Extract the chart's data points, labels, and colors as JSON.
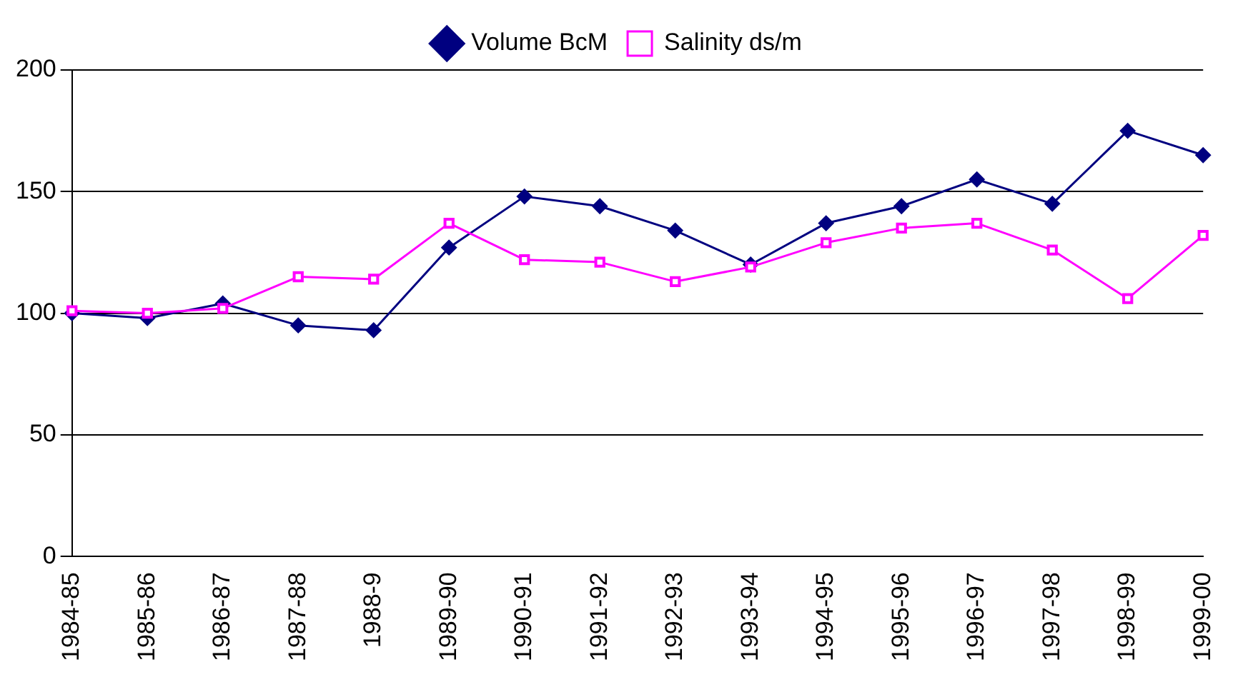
{
  "chart_data": {
    "type": "line",
    "categories": [
      "1984-85",
      "1985-86",
      "1986-87",
      "1987-88",
      "1988-9",
      "1989-90",
      "1990-91",
      "1991-92",
      "1992-93",
      "1993-94",
      "1994-95",
      "1995-96",
      "1996-97",
      "1997-98",
      "1998-99",
      "1999-00"
    ],
    "series": [
      {
        "name": "Volume BcM",
        "color": "#000080",
        "marker": "diamond",
        "values": [
          100,
          98,
          104,
          95,
          93,
          127,
          148,
          144,
          134,
          120,
          137,
          144,
          155,
          145,
          175,
          165
        ]
      },
      {
        "name": "Salinity ds/m",
        "color": "#ff00ff",
        "marker": "square",
        "values": [
          101,
          100,
          102,
          115,
          114,
          137,
          122,
          121,
          113,
          119,
          129,
          135,
          137,
          126,
          106,
          132
        ]
      }
    ],
    "ylim": [
      0,
      200
    ],
    "yticks": [
      0,
      50,
      100,
      150,
      200
    ],
    "grid": "y",
    "legend": "top"
  }
}
